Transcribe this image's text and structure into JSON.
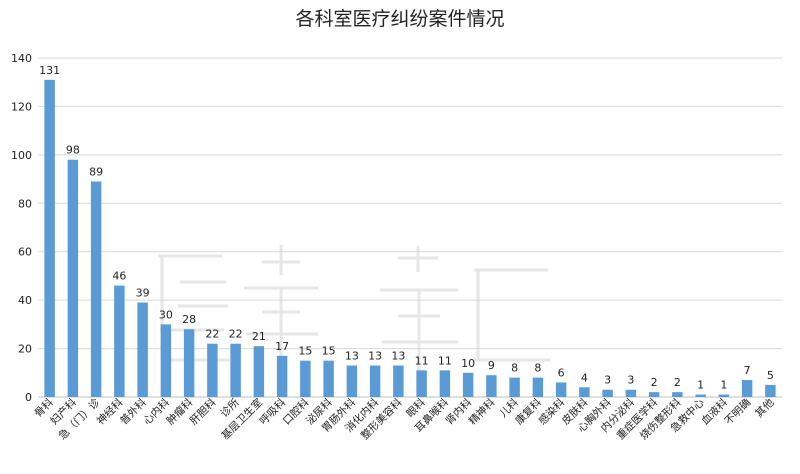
{
  "chart_data": {
    "type": "bar",
    "title": "各科室医疗纠纷案件情况",
    "xlabel": "",
    "ylabel": "",
    "ylim": [
      0,
      140
    ],
    "yticks": [
      0,
      20,
      40,
      60,
      80,
      100,
      120,
      140
    ],
    "grid": true,
    "legend": "none",
    "bar_color": "#5b9bd5",
    "categories": [
      "骨科",
      "妇产科",
      "急（门）诊",
      "神经科",
      "普外科",
      "心内科",
      "肿瘤科",
      "肝胆科",
      "诊所",
      "基层卫生室",
      "呼吸科",
      "口腔科",
      "泌尿科",
      "胃肠外科",
      "消化内科",
      "整形美容科",
      "眼科",
      "耳鼻喉科",
      "肾内科",
      "精神科",
      "儿科",
      "康复科",
      "感染科",
      "皮肤科",
      "心胸外科",
      "内分泌科",
      "重症医学科",
      "烧伤整形科",
      "急救中心",
      "血液科",
      "不明确",
      "其他"
    ],
    "values": [
      131,
      98,
      89,
      46,
      39,
      30,
      28,
      22,
      22,
      21,
      17,
      15,
      15,
      13,
      13,
      13,
      11,
      11,
      10,
      9,
      8,
      8,
      6,
      4,
      3,
      3,
      2,
      2,
      1,
      1,
      7,
      5
    ]
  }
}
